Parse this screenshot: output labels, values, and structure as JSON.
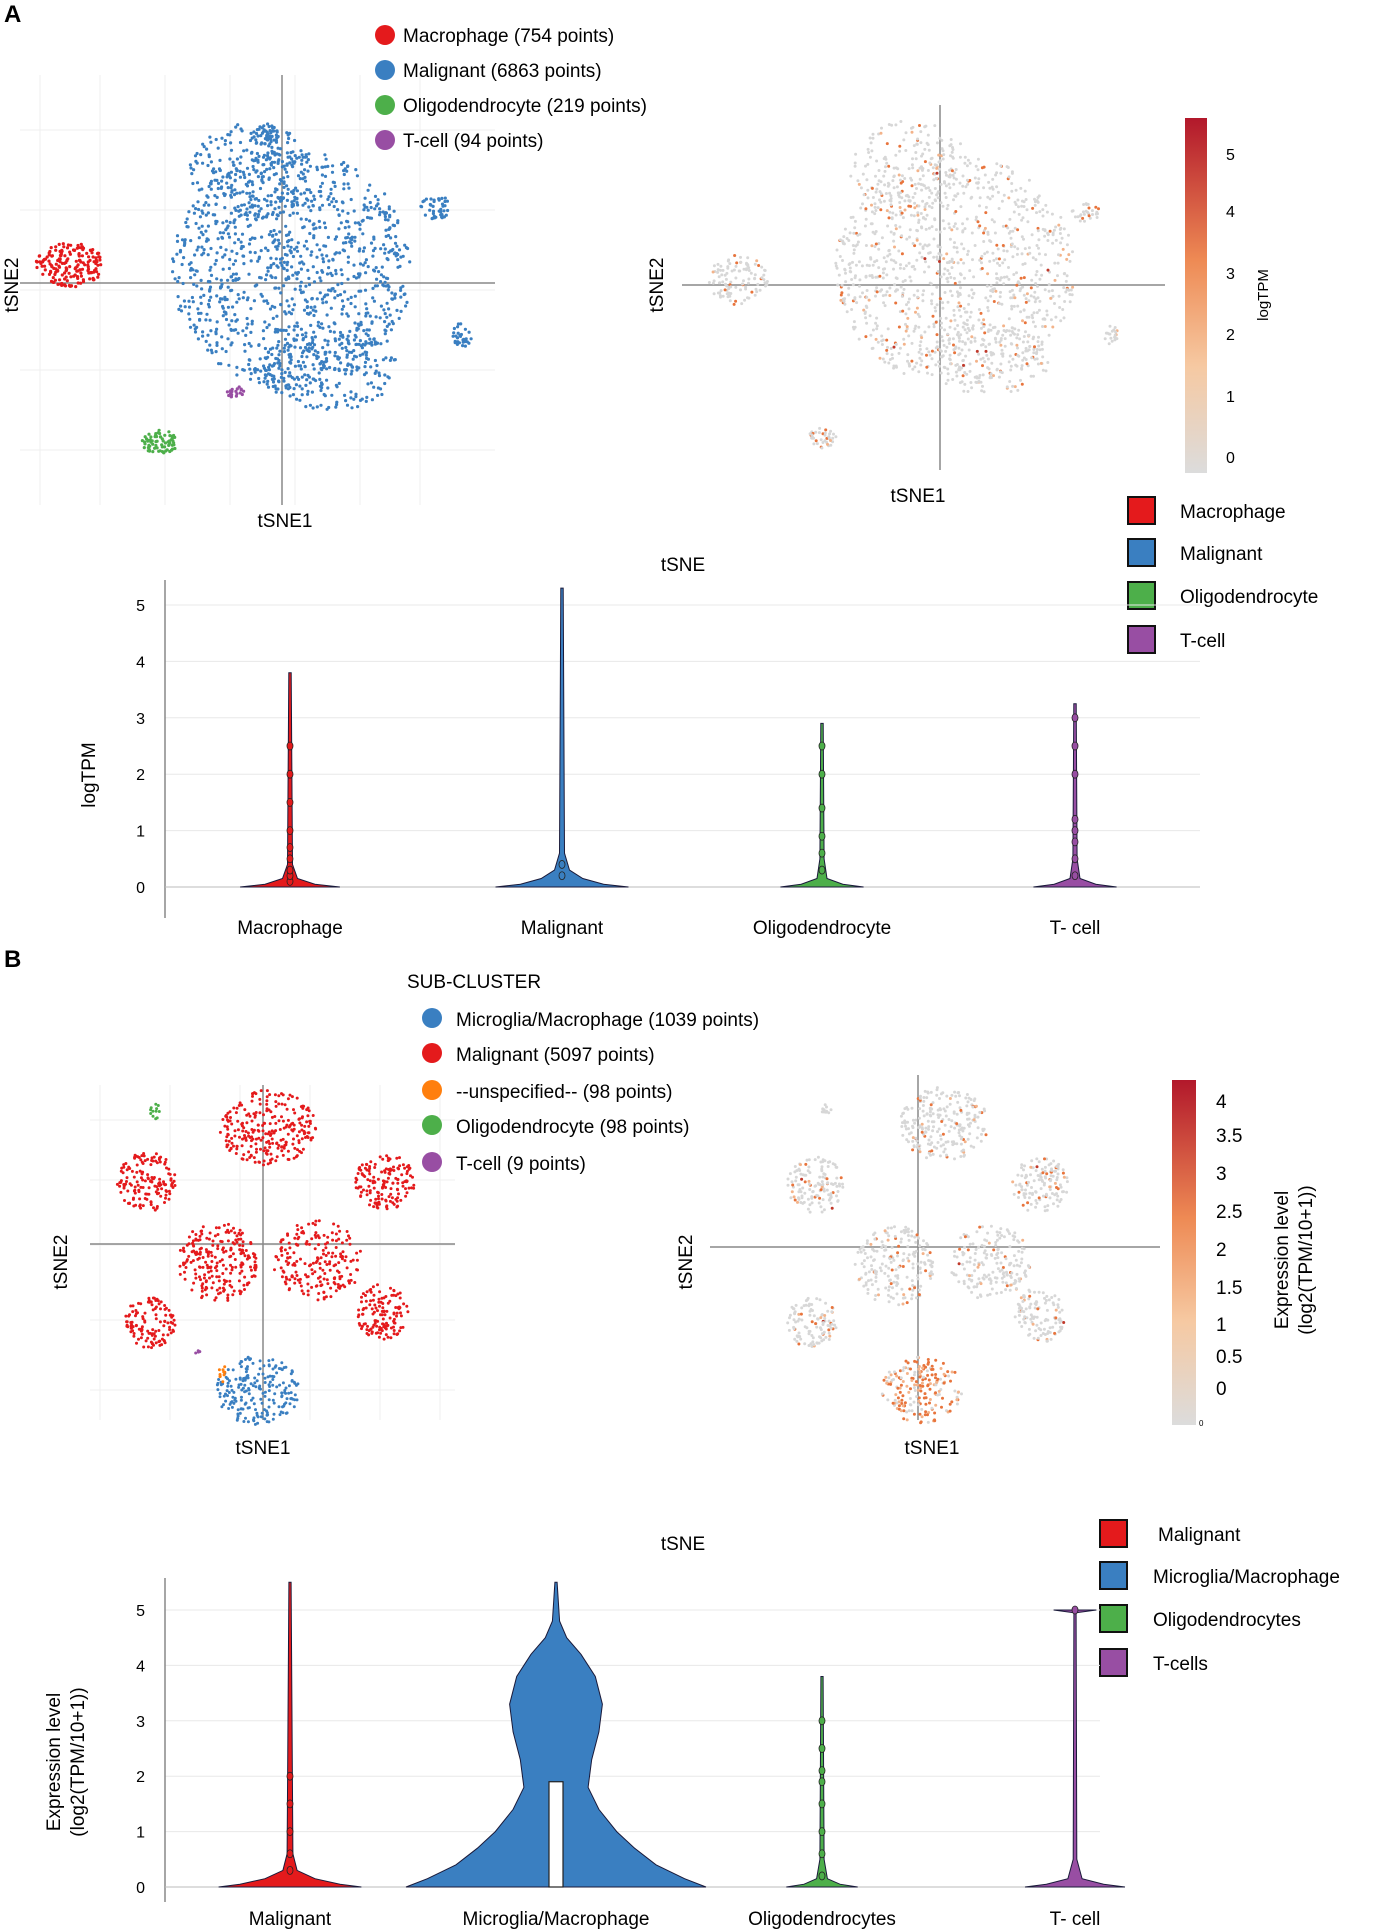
{
  "panel_a": {
    "label": "A",
    "tsne_clusters": {
      "xlabel": "tSNE1",
      "ylabel": "tSNE2",
      "legend": [
        {
          "label": "Macrophage (754 points)",
          "color": "#e41a1c"
        },
        {
          "label": "Malignant (6863 points)",
          "color": "#3a7fc1"
        },
        {
          "label": "Oligodendrocyte (219 points)",
          "color": "#4daf4a"
        },
        {
          "label": "T-cell (94 points)",
          "color": "#984ea3"
        }
      ]
    },
    "tsne_expression": {
      "xlabel": "tSNE1",
      "ylabel": "tSNE2",
      "colorbar_label": "logTPM",
      "colorbar_ticks": [
        "5",
        "4",
        "3",
        "2",
        "1",
        "0"
      ]
    },
    "violin_legend": [
      {
        "label": "Macrophage",
        "color": "#e41a1c"
      },
      {
        "label": "Malignant",
        "color": "#3a7fc1"
      },
      {
        "label": "Oligodendrocyte",
        "color": "#4daf4a"
      },
      {
        "label": "T-cell",
        "color": "#984ea3"
      }
    ]
  },
  "panel_b": {
    "label": "B",
    "tsne_clusters": {
      "xlabel": "tSNE1",
      "ylabel": "tSNE2",
      "legend_title": "SUB-CLUSTER",
      "legend": [
        {
          "label": "Microglia/Macrophage (1039 points)",
          "color": "#3a7fc1"
        },
        {
          "label": "Malignant (5097 points)",
          "color": "#e41a1c"
        },
        {
          "label": "--unspecified-- (98 points)",
          "color": "#ff7f0e"
        },
        {
          "label": "Oligodendrocyte (98 points)",
          "color": "#4daf4a"
        },
        {
          "label": "T-cell (9 points)",
          "color": "#984ea3"
        }
      ]
    },
    "tsne_expression": {
      "xlabel": "tSNE1",
      "ylabel": "tSNE2",
      "colorbar_label_1": "Expression level",
      "colorbar_label_2": "(log2(TPM/10+1))",
      "colorbar_ticks": [
        "4",
        "3.5",
        "3",
        "2.5",
        "2",
        "1.5",
        "1",
        "0.5",
        "0"
      ],
      "colorbar_min_tick": "0"
    },
    "violin_legend": [
      {
        "label": "Malignant",
        "color": "#e41a1c"
      },
      {
        "label": "Microglia/Macrophage",
        "color": "#3a7fc1"
      },
      {
        "label": "Oligodendrocytes",
        "color": "#4daf4a"
      },
      {
        "label": "T-cells",
        "color": "#984ea3"
      }
    ]
  },
  "chart_data": [
    {
      "type": "violin",
      "panel": "A",
      "title": "tSNE",
      "xlabel": "",
      "ylabel": "logTPM",
      "ylabel_2": "",
      "ylim": [
        0,
        5.3
      ],
      "yticks": [
        0,
        1,
        2,
        3,
        4,
        5
      ],
      "categories": [
        "Macrophage",
        "Malignant",
        "Oligodendrocyte",
        "T- cell"
      ],
      "colors": [
        "#e41a1c",
        "#3a7fc1",
        "#4daf4a",
        "#984ea3"
      ],
      "max_values": [
        3.8,
        5.3,
        2.9,
        3.25
      ],
      "box_q3": [
        0,
        0,
        0,
        0
      ],
      "outliers": [
        [
          0.1,
          0.2,
          0.3,
          0.5,
          0.7,
          1.0,
          1.5,
          2.0,
          2.5
        ],
        [
          0.2,
          0.4
        ],
        [
          0.3,
          0.6,
          0.9,
          1.4,
          2.0,
          2.5
        ],
        [
          0.2,
          0.5,
          0.8,
          1.0,
          1.2,
          2.0,
          2.5,
          3.0
        ]
      ],
      "profiles": [
        [
          [
            0,
            0.12
          ],
          [
            0.05,
            0.06
          ],
          [
            0.15,
            0.018
          ],
          [
            0.4,
            0.006
          ],
          [
            3.8,
            0.003
          ]
        ],
        [
          [
            0,
            0.16
          ],
          [
            0.05,
            0.1
          ],
          [
            0.15,
            0.05
          ],
          [
            0.3,
            0.018
          ],
          [
            0.6,
            0.006
          ],
          [
            5.3,
            0.003
          ]
        ],
        [
          [
            0,
            0.1
          ],
          [
            0.05,
            0.05
          ],
          [
            0.15,
            0.012
          ],
          [
            0.5,
            0.005
          ],
          [
            2.9,
            0.003
          ]
        ],
        [
          [
            0,
            0.1
          ],
          [
            0.05,
            0.05
          ],
          [
            0.15,
            0.012
          ],
          [
            0.5,
            0.005
          ],
          [
            3.25,
            0.003
          ]
        ]
      ]
    },
    {
      "type": "violin",
      "panel": "B",
      "title": "tSNE",
      "xlabel": "",
      "ylabel": "Expression level",
      "ylabel_2": "(log2(TPM/10+1))",
      "ylim": [
        0,
        5.5
      ],
      "yticks": [
        0,
        1,
        2,
        3,
        4,
        5
      ],
      "categories": [
        "Malignant",
        "Microglia/Macrophage",
        "Oligodendrocytes",
        "T- cell"
      ],
      "colors": [
        "#e41a1c",
        "#3a7fc1",
        "#4daf4a",
        "#984ea3"
      ],
      "max_values": [
        5.5,
        5.5,
        3.8,
        5.0
      ],
      "box_q3": [
        0,
        1.9,
        0,
        0
      ],
      "outliers": [
        [
          0.3,
          0.6,
          1.0,
          1.5,
          2.0
        ],
        [],
        [
          0.2,
          0.6,
          1.0,
          1.5,
          1.9,
          2.1,
          2.5,
          3.0
        ],
        [
          5.0
        ]
      ],
      "profiles": [
        [
          [
            0,
            0.2
          ],
          [
            0.05,
            0.14
          ],
          [
            0.15,
            0.07
          ],
          [
            0.3,
            0.02
          ],
          [
            0.6,
            0.008
          ],
          [
            5.5,
            0.003
          ]
        ],
        [
          [
            0,
            0.42
          ],
          [
            0.15,
            0.36
          ],
          [
            0.4,
            0.28
          ],
          [
            0.7,
            0.22
          ],
          [
            1.0,
            0.17
          ],
          [
            1.4,
            0.12
          ],
          [
            1.8,
            0.09
          ],
          [
            2.3,
            0.1
          ],
          [
            2.8,
            0.12
          ],
          [
            3.3,
            0.13
          ],
          [
            3.8,
            0.11
          ],
          [
            4.2,
            0.07
          ],
          [
            4.5,
            0.03
          ],
          [
            4.8,
            0.01
          ],
          [
            5.5,
            0.003
          ]
        ],
        [
          [
            0,
            0.1
          ],
          [
            0.05,
            0.05
          ],
          [
            0.15,
            0.015
          ],
          [
            0.5,
            0.006
          ],
          [
            3.8,
            0.003
          ]
        ],
        [
          [
            0,
            0.14
          ],
          [
            0.05,
            0.08
          ],
          [
            0.15,
            0.02
          ],
          [
            0.5,
            0.005
          ],
          [
            4.95,
            0.003
          ],
          [
            5.0,
            0.06
          ]
        ]
      ]
    }
  ]
}
